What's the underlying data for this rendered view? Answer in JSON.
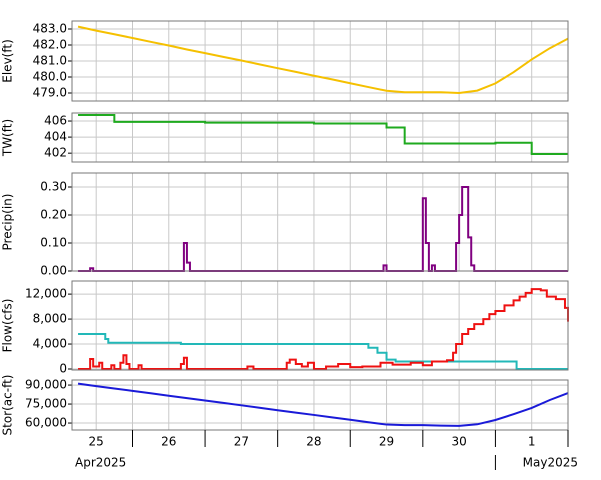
{
  "x_axis": {
    "xlim": [
      "2025-04-25T04:00",
      "2025-05-02T00:00"
    ],
    "xticks": [
      {
        "value": "2025-04-25T12:00",
        "label": "25"
      },
      {
        "value": "2025-04-26T12:00",
        "label": "26"
      },
      {
        "value": "2025-04-27T12:00",
        "label": "27"
      },
      {
        "value": "2025-04-28T12:00",
        "label": "28"
      },
      {
        "value": "2025-04-29T12:00",
        "label": "29"
      },
      {
        "value": "2025-04-30T12:00",
        "label": "30"
      },
      {
        "value": "2025-05-01T12:00",
        "label": "1"
      }
    ],
    "day_boundaries": [
      "2025-04-26T00:00",
      "2025-04-27T00:00",
      "2025-04-28T00:00",
      "2025-04-29T00:00",
      "2025-04-30T00:00",
      "2025-05-01T00:00",
      "2025-05-02T00:00"
    ],
    "month_labels": [
      {
        "value": "2025-04-25T04:00",
        "label": "Apr2025"
      },
      {
        "value": "2025-05-01T00:00",
        "label": "May2025"
      }
    ]
  },
  "chart_data": [
    {
      "type": "line",
      "ylabel": "Elev(ft)",
      "ylim": [
        478.5,
        483.5
      ],
      "grid": true,
      "yticks": [
        {
          "value": 479,
          "label": "479.0"
        },
        {
          "value": 480,
          "label": "480.0"
        },
        {
          "value": 481,
          "label": "481.0"
        },
        {
          "value": 482,
          "label": "482.0"
        },
        {
          "value": 483,
          "label": "483.0"
        }
      ],
      "series": [
        {
          "color": "#f5c000",
          "x": [
            "2025-04-25T06:00",
            "2025-04-25T12:00",
            "2025-04-25T18:00",
            "2025-04-26T00:00",
            "2025-04-26T06:00",
            "2025-04-26T12:00",
            "2025-04-26T18:00",
            "2025-04-27T00:00",
            "2025-04-27T06:00",
            "2025-04-27T12:00",
            "2025-04-27T18:00",
            "2025-04-28T00:00",
            "2025-04-28T06:00",
            "2025-04-28T12:00",
            "2025-04-28T18:00",
            "2025-04-29T00:00",
            "2025-04-29T06:00",
            "2025-04-29T12:00",
            "2025-04-29T18:00",
            "2025-04-30T00:00",
            "2025-04-30T06:00",
            "2025-04-30T12:00",
            "2025-04-30T18:00",
            "2025-05-01T00:00",
            "2025-05-01T06:00",
            "2025-05-01T12:00",
            "2025-05-01T18:00",
            "2025-05-02T00:00"
          ],
          "values": [
            483.15,
            482.9,
            482.67,
            482.44,
            482.2,
            481.97,
            481.72,
            481.49,
            481.26,
            481.03,
            480.79,
            480.55,
            480.32,
            480.08,
            479.85,
            479.61,
            479.37,
            479.14,
            479.05,
            479.05,
            479.05,
            479.0,
            479.15,
            479.6,
            480.3,
            481.1,
            481.8,
            482.4
          ]
        }
      ]
    },
    {
      "type": "line",
      "ylabel": "TW(ft)",
      "ylim": [
        400.9,
        407
      ],
      "grid": true,
      "step": true,
      "yticks": [
        402,
        404,
        406
      ],
      "series": [
        {
          "color": "#1faa1f",
          "x": [
            "2025-04-25T06:00",
            "2025-04-25T12:00",
            "2025-04-25T18:00",
            "2025-04-26T00:00",
            "2025-04-26T06:00",
            "2025-04-26T12:00",
            "2025-04-26T18:00",
            "2025-04-27T00:00",
            "2025-04-27T06:00",
            "2025-04-27T12:00",
            "2025-04-27T18:00",
            "2025-04-28T00:00",
            "2025-04-28T06:00",
            "2025-04-28T12:00",
            "2025-04-28T18:00",
            "2025-04-29T00:00",
            "2025-04-29T06:00",
            "2025-04-29T12:00",
            "2025-04-29T18:00",
            "2025-04-30T00:00",
            "2025-04-30T06:00",
            "2025-04-30T12:00",
            "2025-04-30T18:00",
            "2025-05-01T00:00",
            "2025-05-01T06:00",
            "2025-05-01T12:00",
            "2025-05-01T18:00",
            "2025-05-02T00:00"
          ],
          "values": [
            406.75,
            406.75,
            405.9,
            405.9,
            405.9,
            405.9,
            405.9,
            405.8,
            405.8,
            405.8,
            405.8,
            405.8,
            405.8,
            405.7,
            405.7,
            405.7,
            405.7,
            405.2,
            403.2,
            403.2,
            403.2,
            403.2,
            403.2,
            403.3,
            403.3,
            401.9,
            401.9,
            401.9
          ]
        }
      ]
    },
    {
      "type": "line",
      "ylabel": "Precip(in)",
      "ylim": [
        0,
        0.35
      ],
      "grid": true,
      "step": true,
      "yticks": [
        {
          "value": 0,
          "label": "0.00"
        },
        {
          "value": 0.1,
          "label": "0.10"
        },
        {
          "value": 0.2,
          "label": "0.20"
        },
        {
          "value": 0.3,
          "label": "0.30"
        }
      ],
      "series": [
        {
          "color": "#800080",
          "x": [
            "2025-04-25T06:00",
            "2025-04-25T10:00",
            "2025-04-25T11:00",
            "2025-04-26T17:00",
            "2025-04-26T18:00",
            "2025-04-26T19:00",
            "2025-04-29T11:00",
            "2025-04-29T12:00",
            "2025-04-30T00:00",
            "2025-04-30T01:00",
            "2025-04-30T02:00",
            "2025-04-30T03:00",
            "2025-04-30T04:00",
            "2025-04-30T11:00",
            "2025-04-30T12:00",
            "2025-04-30T13:00",
            "2025-04-30T14:00",
            "2025-04-30T15:00",
            "2025-04-30T16:00",
            "2025-04-30T17:00",
            "2025-05-02T00:00"
          ],
          "values": [
            0,
            0.01,
            0,
            0.1,
            0.03,
            0,
            0.02,
            0,
            0.26,
            0.1,
            0,
            0.02,
            0,
            0.1,
            0.2,
            0.3,
            0.3,
            0.12,
            0.02,
            0,
            0
          ]
        }
      ]
    },
    {
      "type": "line",
      "ylabel": "Flow(cfs)",
      "ylim": [
        -160,
        14100
      ],
      "grid": true,
      "step": true,
      "yticks": [
        0,
        {
          "value": 4000,
          "label": "4,000"
        },
        {
          "value": 8000,
          "label": "8,000"
        },
        {
          "value": 12000,
          "label": "12,000"
        }
      ],
      "series": [
        {
          "color": "#22b8b8",
          "x": [
            "2025-04-25T06:00",
            "2025-04-25T15:00",
            "2025-04-25T16:00",
            "2025-04-26T16:00",
            "2025-04-29T06:00",
            "2025-04-29T09:00",
            "2025-04-29T12:00",
            "2025-04-29T15:00",
            "2025-05-01T07:00",
            "2025-05-02T00:00"
          ],
          "values": [
            5600,
            4800,
            4200,
            4000,
            3400,
            2600,
            1500,
            1200,
            0,
            0
          ]
        },
        {
          "color": "#ee1111",
          "x": [
            "2025-04-25T06:00",
            "2025-04-25T10:00",
            "2025-04-25T11:00",
            "2025-04-25T13:00",
            "2025-04-25T14:00",
            "2025-04-25T17:00",
            "2025-04-25T18:00",
            "2025-04-25T20:00",
            "2025-04-25T21:00",
            "2025-04-25T22:00",
            "2025-04-25T23:00",
            "2025-04-26T02:00",
            "2025-04-26T03:00",
            "2025-04-26T16:00",
            "2025-04-26T17:00",
            "2025-04-26T18:00",
            "2025-04-27T14:00",
            "2025-04-27T16:00",
            "2025-04-28T03:00",
            "2025-04-28T04:00",
            "2025-04-28T06:00",
            "2025-04-28T08:00",
            "2025-04-28T10:00",
            "2025-04-28T12:00",
            "2025-04-28T16:00",
            "2025-04-28T20:00",
            "2025-04-29T00:00",
            "2025-04-29T04:00",
            "2025-04-29T10:00",
            "2025-04-29T14:00",
            "2025-04-29T20:00",
            "2025-04-30T00:00",
            "2025-04-30T03:00",
            "2025-04-30T08:00",
            "2025-04-30T10:00",
            "2025-04-30T11:00",
            "2025-04-30T13:00",
            "2025-04-30T15:00",
            "2025-04-30T17:00",
            "2025-04-30T20:00",
            "2025-04-30T22:00",
            "2025-05-01T00:00",
            "2025-05-01T03:00",
            "2025-05-01T06:00",
            "2025-05-01T08:00",
            "2025-05-01T10:00",
            "2025-05-01T12:00",
            "2025-05-01T15:00",
            "2025-05-01T17:00",
            "2025-05-01T20:00",
            "2025-05-01T23:00",
            "2025-05-02T00:00"
          ],
          "values": [
            0,
            1600,
            400,
            1000,
            0,
            600,
            0,
            1000,
            2200,
            800,
            0,
            600,
            0,
            800,
            1800,
            0,
            400,
            0,
            1000,
            1500,
            800,
            400,
            1000,
            0,
            400,
            800,
            300,
            400,
            1000,
            700,
            1000,
            600,
            1200,
            1400,
            2600,
            4000,
            5600,
            6400,
            7200,
            8000,
            8800,
            9300,
            10200,
            11000,
            11600,
            12200,
            12800,
            12600,
            11600,
            11200,
            9800,
            7600
          ]
        }
      ]
    },
    {
      "type": "line",
      "ylabel": "Stor(ac-ft)",
      "ylim": [
        54500,
        94000
      ],
      "grid": true,
      "yticks": [
        {
          "value": 60000,
          "label": "60,000"
        },
        {
          "value": 75000,
          "label": "75,000"
        },
        {
          "value": 90000,
          "label": "90,000"
        }
      ],
      "series": [
        {
          "color": "#1a1ad8",
          "x": [
            "2025-04-25T06:00",
            "2025-04-25T12:00",
            "2025-04-25T18:00",
            "2025-04-26T00:00",
            "2025-04-26T06:00",
            "2025-04-26T12:00",
            "2025-04-26T18:00",
            "2025-04-27T00:00",
            "2025-04-27T06:00",
            "2025-04-27T12:00",
            "2025-04-27T18:00",
            "2025-04-28T00:00",
            "2025-04-28T06:00",
            "2025-04-28T12:00",
            "2025-04-28T18:00",
            "2025-04-29T00:00",
            "2025-04-29T06:00",
            "2025-04-29T12:00",
            "2025-04-29T18:00",
            "2025-04-30T00:00",
            "2025-04-30T06:00",
            "2025-04-30T12:00",
            "2025-04-30T18:00",
            "2025-05-01T00:00",
            "2025-05-01T06:00",
            "2025-05-01T12:00",
            "2025-05-01T18:00",
            "2025-05-02T00:00"
          ],
          "values": [
            91100,
            89200,
            87300,
            85400,
            83500,
            81600,
            79700,
            77800,
            75900,
            74000,
            72100,
            70100,
            68200,
            66400,
            64500,
            62600,
            60600,
            58800,
            58400,
            58400,
            58000,
            57800,
            59000,
            62400,
            67000,
            71900,
            78200,
            83700
          ]
        }
      ]
    }
  ]
}
